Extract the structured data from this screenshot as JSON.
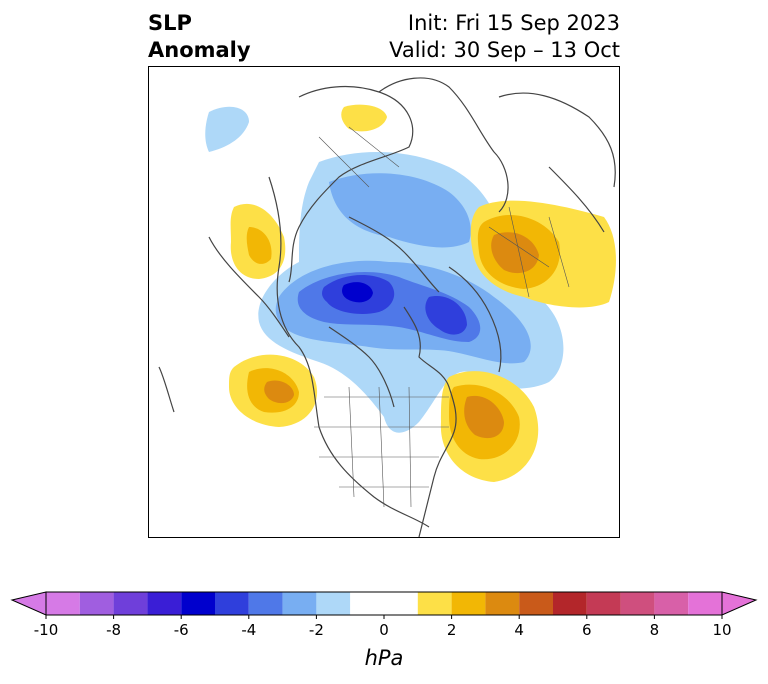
{
  "title": {
    "left_line1": "SLP",
    "left_line2": "Anomaly",
    "right_line1": "Init: Fri 15 Sep 2023",
    "right_line2": "Valid: 30 Sep – 13 Oct"
  },
  "colorbar": {
    "units": "hPa",
    "tick_labels": [
      "-10",
      "-8",
      "-6",
      "-4",
      "-2",
      "0",
      "2",
      "4",
      "6",
      "8",
      "10"
    ],
    "bins": [
      {
        "lo": -10,
        "hi": -9,
        "color": "#d67ae6"
      },
      {
        "lo": -9,
        "hi": -8,
        "color": "#a05ee0"
      },
      {
        "lo": -8,
        "hi": -7,
        "color": "#6f3fda"
      },
      {
        "lo": -7,
        "hi": -6,
        "color": "#3a1ed6"
      },
      {
        "lo": -6,
        "hi": -5,
        "color": "#0000cd"
      },
      {
        "lo": -5,
        "hi": -4,
        "color": "#2f3fdc"
      },
      {
        "lo": -4,
        "hi": -3,
        "color": "#4f78e8"
      },
      {
        "lo": -3,
        "hi": -2,
        "color": "#78aef2"
      },
      {
        "lo": -2,
        "hi": -1,
        "color": "#aed8f8"
      },
      {
        "lo": -1,
        "hi": 1,
        "color": "#ffffff"
      },
      {
        "lo": 1,
        "hi": 2,
        "color": "#fde047"
      },
      {
        "lo": 2,
        "hi": 3,
        "color": "#f2b705"
      },
      {
        "lo": 3,
        "hi": 4,
        "color": "#dc8a10"
      },
      {
        "lo": 4,
        "hi": 5,
        "color": "#c95a1a"
      },
      {
        "lo": 5,
        "hi": 6,
        "color": "#b3262a"
      },
      {
        "lo": 6,
        "hi": 7,
        "color": "#c43a55"
      },
      {
        "lo": 7,
        "hi": 8,
        "color": "#cf4f7e"
      },
      {
        "lo": 8,
        "hi": 9,
        "color": "#d860a8"
      },
      {
        "lo": 9,
        "hi": 10,
        "color": "#e472d8"
      }
    ],
    "extend": "both",
    "min_arrow_color": "#d67ae6",
    "max_arrow_color": "#e472d8"
  },
  "map": {
    "projection": "north-polar-stereographic",
    "coastline_color": "#444444"
  }
}
